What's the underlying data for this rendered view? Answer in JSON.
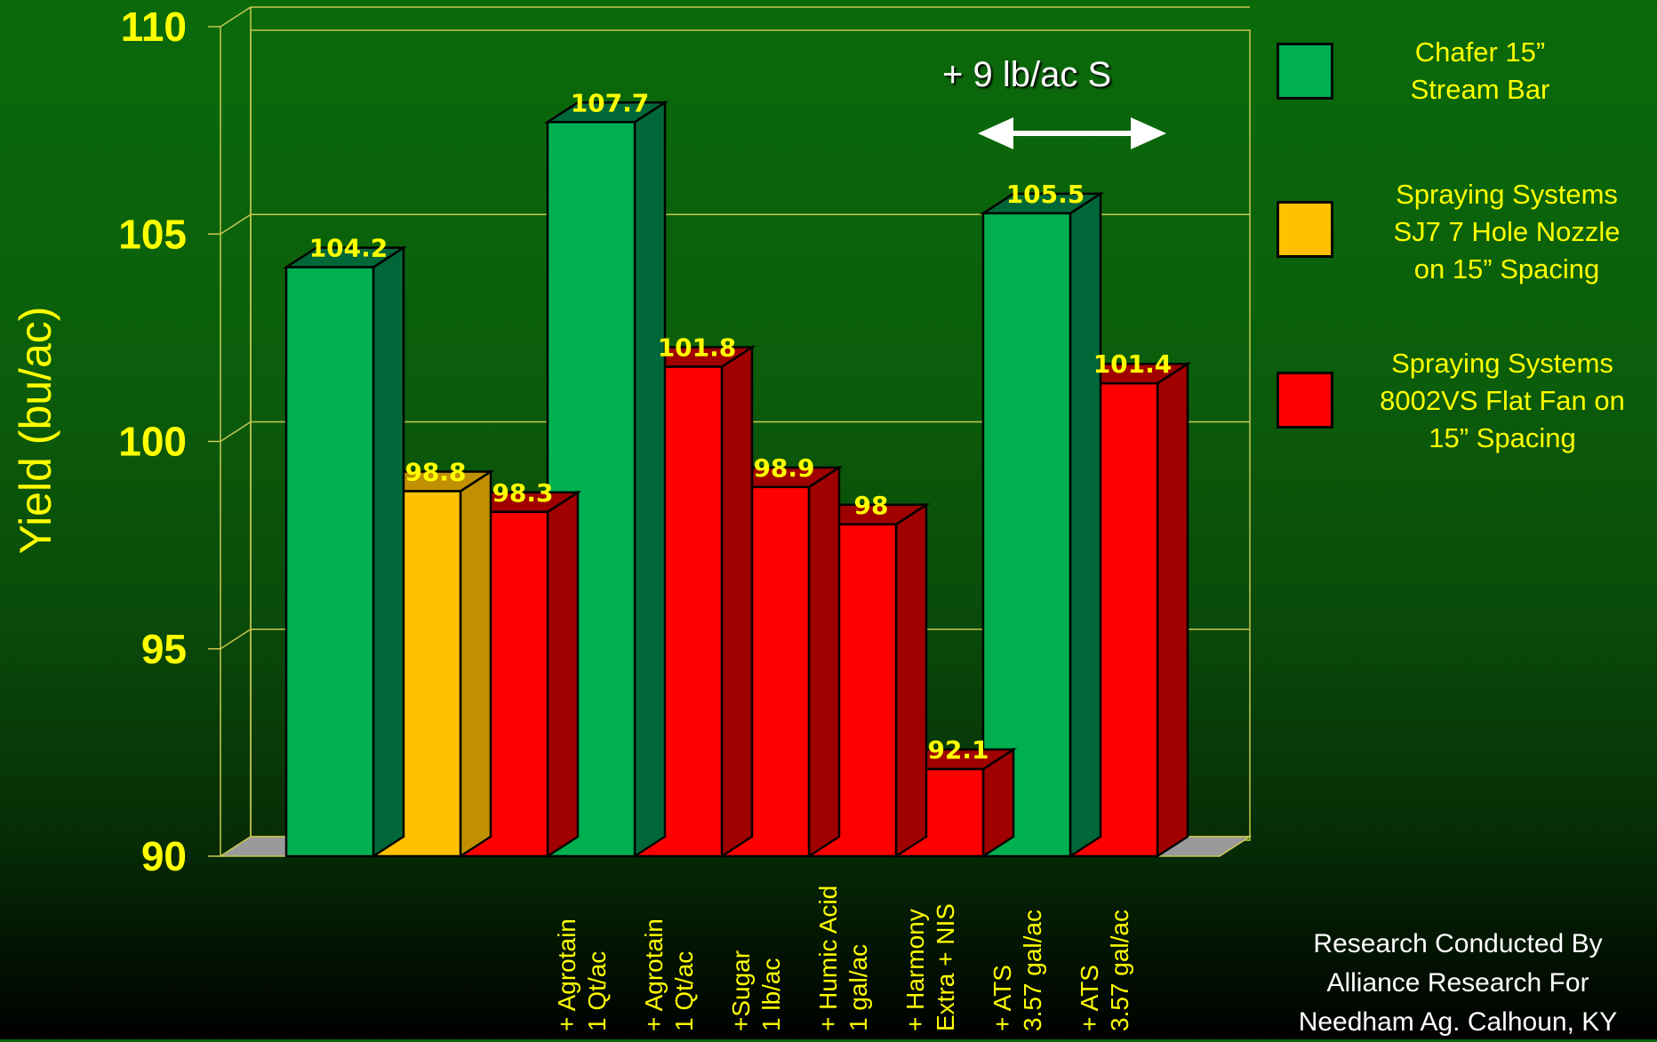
{
  "chart_data": {
    "type": "bar",
    "ylabel": "Yield (bu/ac)",
    "ylim": [
      90,
      110
    ],
    "yticks": [
      90,
      95,
      100,
      105,
      110
    ],
    "grid": true,
    "legend_position": "right",
    "categories": [
      "",
      "",
      "",
      "+ Agrotain\n1 Qt/ac",
      "+ Agrotain\n1 Qt/ac",
      "+Sugar\n1 lb/ac",
      "+ Humic Acid\n1 gal/ac",
      "+ Harmony\nExtra + NIS",
      "+ ATS\n3.57 gal/ac",
      "+ ATS\n3.57 gal/ac"
    ],
    "values": [
      104.2,
      98.8,
      98.3,
      107.7,
      101.8,
      98.9,
      98,
      92.1,
      105.5,
      101.4
    ],
    "data_labels": [
      "104.2",
      "98.8",
      "98.3",
      "107.7",
      "101.8",
      "98.9",
      "98",
      "92.1",
      "105.5",
      "101.4"
    ],
    "bar_series": [
      0,
      1,
      2,
      0,
      2,
      2,
      2,
      2,
      0,
      2
    ],
    "series": [
      {
        "name": "Chafer 15”\nStream Bar",
        "color": "#00b050",
        "side_color": "#006838"
      },
      {
        "name": "Spraying Systems\nSJ7 7 Hole Nozzle\non 15” Spacing",
        "color": "#ffc000",
        "side_color": "#c09000"
      },
      {
        "name": "Spraying Systems\n8002VS Flat Fan on\n15” Spacing",
        "color": "#ff0000",
        "side_color": "#a00000"
      }
    ],
    "annotation": "+ 9 lb/ac S",
    "credit": "Research Conducted By\nAlliance Research For\nNeedham Ag. Calhoun, KY"
  }
}
